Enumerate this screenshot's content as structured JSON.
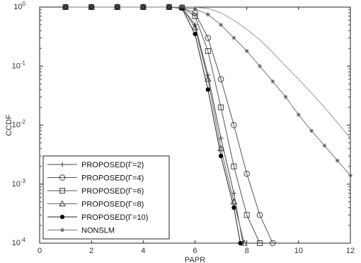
{
  "chart_data": {
    "type": "line",
    "xlabel": "PAPR",
    "ylabel": "CCDF",
    "xlim": [
      0,
      12
    ],
    "ylim": [
      0.0001,
      1
    ],
    "yscale": "log",
    "grid": false,
    "legend_position": "bottom-left",
    "x_ticks": [
      "0",
      "2",
      "4",
      "6",
      "8",
      "10",
      "12"
    ],
    "y_ticks": [
      {
        "base": "10",
        "exp": "0"
      },
      {
        "base": "10",
        "exp": "-1"
      },
      {
        "base": "10",
        "exp": "-2"
      },
      {
        "base": "10",
        "exp": "-3"
      },
      {
        "base": "10",
        "exp": "-4"
      }
    ],
    "series": [
      {
        "name": "PROPOSED(Γ=2)",
        "marker": "plus",
        "x": [
          1,
          2,
          3,
          4,
          5,
          5.5,
          6,
          6.5,
          7,
          7.5,
          7.85
        ],
        "y": [
          1,
          1,
          1,
          1,
          1,
          0.98,
          0.5,
          0.07,
          0.006,
          0.0007,
          0.0001
        ]
      },
      {
        "name": "PROPOSED(Γ=4)",
        "marker": "circle",
        "x": [
          1,
          2,
          3,
          4,
          5,
          5.5,
          6,
          6.5,
          7,
          7.5,
          8,
          8.5,
          9
        ],
        "y": [
          1,
          1,
          1,
          1,
          1,
          0.98,
          0.8,
          0.3,
          0.06,
          0.01,
          0.0015,
          0.0003,
          0.0001
        ]
      },
      {
        "name": "PROPOSED(Γ=6)",
        "marker": "square",
        "x": [
          1,
          2,
          3,
          4,
          5,
          5.5,
          6,
          6.5,
          7,
          7.5,
          8,
          8.5
        ],
        "y": [
          1,
          1,
          1,
          1,
          1,
          0.98,
          0.7,
          0.18,
          0.02,
          0.002,
          0.0003,
          0.0001
        ]
      },
      {
        "name": "PROPOSED(Γ=8)",
        "marker": "triangle",
        "x": [
          1,
          2,
          3,
          4,
          5,
          5.5,
          6,
          6.5,
          7,
          7.5,
          7.9
        ],
        "y": [
          1,
          1,
          1,
          1,
          1,
          0.98,
          0.45,
          0.06,
          0.004,
          0.0005,
          0.0001
        ]
      },
      {
        "name": "PROPOSED(Γ=10)",
        "marker": "dot",
        "x": [
          1,
          2,
          3,
          4,
          5,
          5.5,
          6,
          6.5,
          7,
          7.5,
          7.75
        ],
        "y": [
          1,
          1,
          1,
          1,
          1,
          0.95,
          0.35,
          0.04,
          0.003,
          0.0004,
          0.0001
        ]
      },
      {
        "name": "NONSLM",
        "marker": "star",
        "x": [
          1,
          2,
          3,
          4,
          5,
          5.5,
          6,
          6.5,
          7,
          7.5,
          8,
          8.5,
          9,
          9.5,
          10,
          10.5,
          11,
          11.5,
          12
        ],
        "y": [
          1,
          1,
          1,
          1,
          1,
          0.99,
          0.93,
          0.75,
          0.5,
          0.3,
          0.18,
          0.1,
          0.055,
          0.03,
          0.015,
          0.008,
          0.0045,
          0.0025,
          0.0014
        ]
      },
      {
        "name": "",
        "marker": "none",
        "x": [
          5,
          5.5,
          6,
          6.5,
          7,
          7.5,
          8,
          8.5,
          9,
          9.5,
          10,
          10.5,
          11,
          11.5,
          12
        ],
        "y": [
          1,
          1,
          0.99,
          0.95,
          0.8,
          0.6,
          0.42,
          0.28,
          0.17,
          0.1,
          0.06,
          0.035,
          0.02,
          0.011,
          0.006
        ]
      }
    ]
  }
}
